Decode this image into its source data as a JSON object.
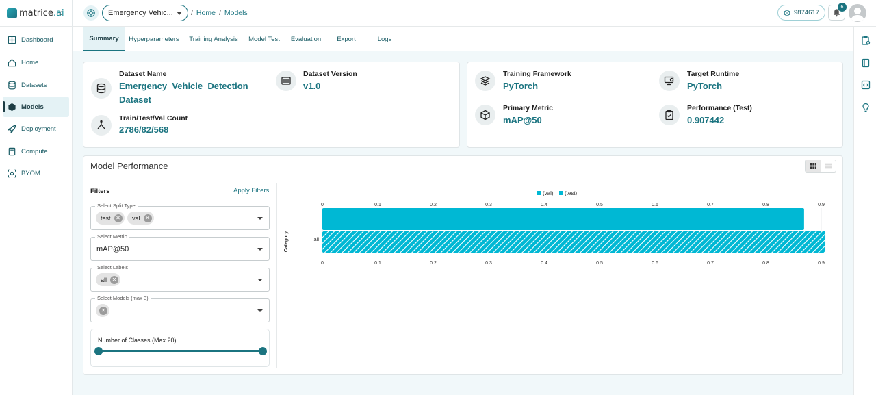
{
  "app": {
    "brand_prefix": "matrice",
    "brand_suffix": ".ai",
    "collapse_glyph": "‹"
  },
  "sidebar": {
    "items": [
      {
        "label": "Dashboard",
        "icon": "dashboard-icon"
      },
      {
        "label": "Home",
        "icon": "home-icon"
      },
      {
        "label": "Datasets",
        "icon": "database-icon"
      },
      {
        "label": "Models",
        "icon": "cube-icon",
        "active": true
      },
      {
        "label": "Deployment",
        "icon": "rocket-icon"
      },
      {
        "label": "Compute",
        "icon": "server-icon"
      },
      {
        "label": "BYOM",
        "icon": "byom-icon"
      }
    ]
  },
  "header": {
    "project": "Emergency Vehic...",
    "breadcrumb": [
      "Home",
      "Models"
    ],
    "credits": "9874617",
    "notifications": "6"
  },
  "tabs": [
    "Summary",
    "Hyperparameters",
    "Training Analysis",
    "Model Test",
    "Evaluation",
    "Export",
    "Logs"
  ],
  "dataset_card": {
    "dataset_name_label": "Dataset Name",
    "dataset_name_line1": "Emergency_Vehicle_Detection",
    "dataset_name_line2": "Dataset",
    "dataset_version_label": "Dataset Version",
    "dataset_version": "v1.0",
    "count_label": "Train/Test/Val Count",
    "count": "2786/82/568"
  },
  "training_card": {
    "framework_label": "Training Framework",
    "framework": "PyTorch",
    "runtime_label": "Target Runtime",
    "runtime": "PyTorch",
    "metric_label": "Primary Metric",
    "metric": "mAP@50",
    "performance_label": "Performance (Test)",
    "performance": "0.907442"
  },
  "performance": {
    "title": "Model Performance",
    "filters_label": "Filters",
    "apply_filters": "Apply Filters",
    "split_type_label": "Select Split Type",
    "split_chips": [
      "test",
      "val"
    ],
    "metric_label": "Select Metric",
    "metric_value": "mAP@50",
    "labels_label": "Select Labels",
    "label_chips": [
      "all"
    ],
    "models_label": "Select Models (max 3)",
    "classes_label": "Number of Classes (Max 20)",
    "classes_range": [
      0,
      1
    ]
  },
  "chart_data": {
    "type": "bar",
    "orientation": "horizontal",
    "categories": [
      "all"
    ],
    "ylabel": "Category",
    "xlim": [
      0,
      0.9
    ],
    "xticks": [
      "0",
      "0.1",
      "0.2",
      "0.3",
      "0.4",
      "0.5",
      "0.6",
      "0.7",
      "0.8",
      "0.9"
    ],
    "legend_position": "top",
    "grid": true,
    "series": [
      {
        "name": "(val)",
        "values": [
          0.869
        ],
        "color": "#00b8d4",
        "pattern": "solid"
      },
      {
        "name": "(test)",
        "values": [
          0.907442
        ],
        "color": "#00b8d4",
        "pattern": "hatched"
      }
    ]
  }
}
